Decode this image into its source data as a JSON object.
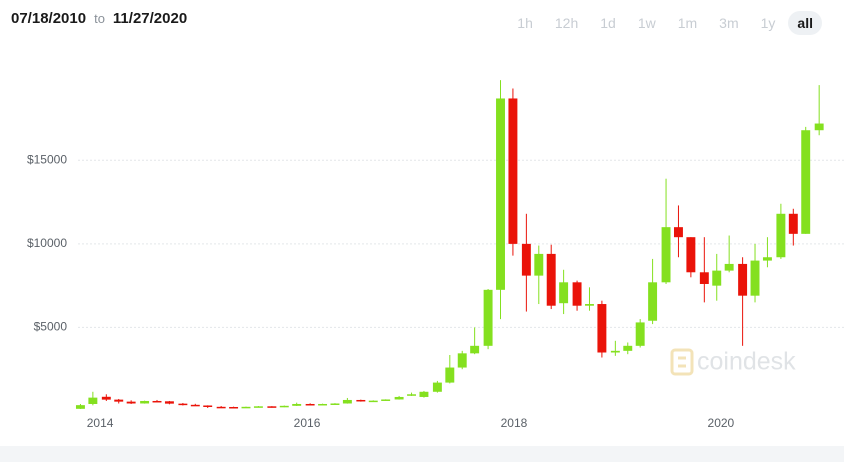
{
  "date_range": {
    "from": "07/18/2010",
    "separator": "to",
    "to": "11/27/2020"
  },
  "range_buttons": [
    "1h",
    "12h",
    "1d",
    "1w",
    "1m",
    "3m",
    "1y",
    "all"
  ],
  "active_button": "all",
  "watermark": "coindesk",
  "chart_data": {
    "type": "candlestick",
    "x": [
      2013.81,
      2013.93,
      2014.06,
      2014.18,
      2014.3,
      2014.43,
      2014.55,
      2014.67,
      2014.8,
      2014.92,
      2015.04,
      2015.17,
      2015.29,
      2015.41,
      2015.53,
      2015.66,
      2015.78,
      2015.9,
      2016.03,
      2016.15,
      2016.27,
      2016.39,
      2016.52,
      2016.64,
      2016.76,
      2016.89,
      2017.01,
      2017.13,
      2017.26,
      2017.38,
      2017.5,
      2017.62,
      2017.75,
      2017.87,
      2017.99,
      2018.12,
      2018.24,
      2018.36,
      2018.48,
      2018.61,
      2018.73,
      2018.85,
      2018.98,
      2019.1,
      2019.22,
      2019.34,
      2019.47,
      2019.59,
      2019.71,
      2019.84,
      2019.96,
      2020.08,
      2020.21,
      2020.33,
      2020.45,
      2020.58,
      2020.7,
      2020.82,
      2020.95
    ],
    "open": [
      130,
      420,
      850,
      680,
      560,
      450,
      600,
      580,
      440,
      370,
      330,
      250,
      240,
      235,
      250,
      280,
      240,
      310,
      420,
      400,
      420,
      450,
      660,
      600,
      640,
      690,
      960,
      840,
      1150,
      1700,
      2600,
      3450,
      3900,
      7250,
      18700,
      10000,
      8100,
      9400,
      6450,
      7700,
      6300,
      6400,
      3500,
      3600,
      3900,
      5400,
      7700,
      11000,
      10400,
      8300,
      7500,
      8400,
      8800,
      6900,
      9000,
      9200,
      11800,
      10600,
      16800
    ],
    "high": [
      420,
      1150,
      1000,
      720,
      640,
      620,
      660,
      600,
      480,
      430,
      340,
      300,
      260,
      260,
      300,
      290,
      330,
      500,
      460,
      440,
      470,
      780,
      680,
      640,
      700,
      900,
      1100,
      1200,
      1800,
      3350,
      3600,
      5000,
      7300,
      19800,
      19300,
      11800,
      9900,
      9950,
      8450,
      7800,
      7400,
      6600,
      4200,
      4100,
      5500,
      9100,
      13900,
      12300,
      10400,
      10400,
      9400,
      10500,
      9200,
      10000,
      10400,
      12400,
      12100,
      17000,
      19500
    ],
    "low": [
      120,
      340,
      600,
      450,
      420,
      440,
      560,
      400,
      330,
      300,
      180,
      210,
      220,
      220,
      240,
      200,
      230,
      300,
      360,
      380,
      410,
      440,
      560,
      590,
      620,
      680,
      900,
      800,
      1100,
      1650,
      2500,
      3400,
      3700,
      5500,
      9300,
      5950,
      6400,
      6100,
      5800,
      6000,
      6000,
      3200,
      3300,
      3400,
      3800,
      5200,
      7600,
      9200,
      8000,
      6500,
      6600,
      8300,
      3900,
      6500,
      8600,
      9100,
      9900,
      10600,
      16500
    ],
    "close": [
      350,
      800,
      680,
      560,
      450,
      600,
      580,
      440,
      370,
      330,
      250,
      240,
      235,
      250,
      280,
      240,
      310,
      420,
      400,
      420,
      450,
      660,
      600,
      620,
      690,
      840,
      1000,
      1150,
      1700,
      2600,
      3450,
      3900,
      7250,
      18700,
      10000,
      8100,
      9400,
      6300,
      7700,
      6300,
      6400,
      3500,
      3600,
      3900,
      5300,
      7700,
      11000,
      10400,
      8300,
      7600,
      8400,
      8800,
      6900,
      9000,
      9200,
      11800,
      10600,
      16800,
      17200
    ],
    "up_color": "#84e01f",
    "down_color": "#ea1309",
    "xlim": [
      2013.68,
      2021.19
    ],
    "xticks": [
      2014,
      2016,
      2018,
      2020
    ],
    "ylim": [
      0,
      21600
    ],
    "yticks": [
      {
        "value": 5000,
        "label": "$5000"
      },
      {
        "value": 10000,
        "label": "$10000"
      },
      {
        "value": 15000,
        "label": "$15000"
      }
    ],
    "grid": true
  }
}
